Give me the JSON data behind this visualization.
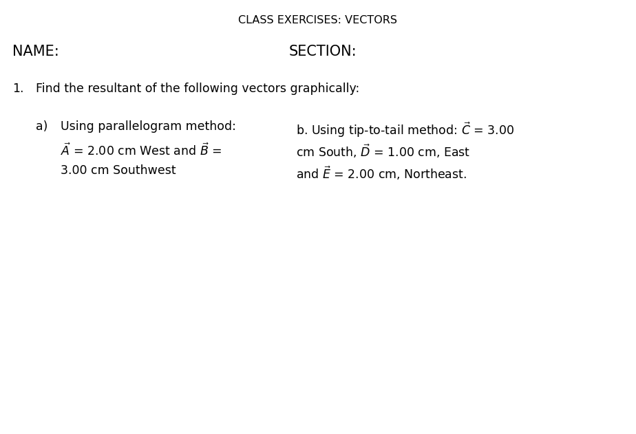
{
  "title": "CLASS EXERCISES: VECTORS",
  "name_label": "NAME:",
  "section_label": "SECTION:",
  "item_number": "1.",
  "item_text": "Find the resultant of the following vectors graphically:",
  "part_a_label": "a)",
  "part_a_line1": "Using parallelogram method:",
  "part_a_line2": "$\\vec{A}$ = 2.00 cm West and $\\vec{B}$ =",
  "part_a_line3": "3.00 cm Southwest",
  "part_b_line1": "b. Using tip-to-tail method: $\\vec{C}$ = 3.00",
  "part_b_line2": "cm South, $\\vec{D}$ = 1.00 cm, East",
  "part_b_line3": "and $\\vec{E}$ = 2.00 cm, Northeast.",
  "bg_color": "#ffffff",
  "text_color": "#000000",
  "title_fontsize": 11.5,
  "name_fontsize": 15,
  "body_fontsize": 12.5,
  "figwidth": 9.24,
  "figheight": 6.31,
  "dpi": 100
}
